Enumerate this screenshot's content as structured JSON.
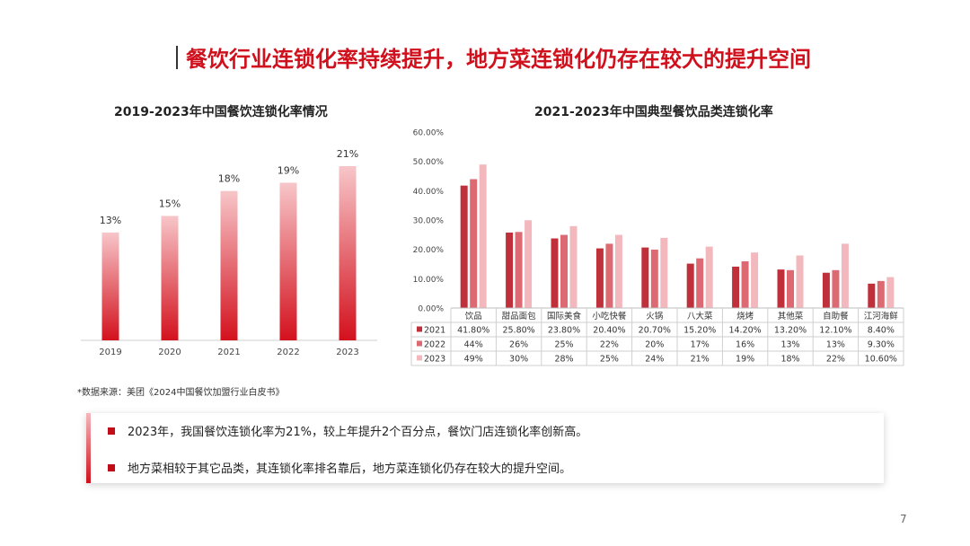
{
  "title": "餐饮行业连锁化率持续提升，地方菜连锁化仍存在较大的提升空间",
  "colors": {
    "accent": "#d0101c",
    "s2021": "#c0303a",
    "s2022": "#dd6a72",
    "s2023": "#f3b8bd"
  },
  "chart_data": [
    {
      "type": "bar",
      "title": "2019-2023年中国餐饮连锁化率情况",
      "categories": [
        "2019",
        "2020",
        "2021",
        "2022",
        "2023"
      ],
      "values": [
        13,
        15,
        18,
        19,
        21
      ],
      "data_labels": [
        "13%",
        "15%",
        "18%",
        "19%",
        "21%"
      ],
      "ylim": [
        0,
        25
      ]
    },
    {
      "type": "bar",
      "title": "2021-2023年中国典型餐饮品类连锁化率",
      "categories": [
        "饮品",
        "甜品面包",
        "国际美食",
        "小吃快餐",
        "火锅",
        "八大菜",
        "烧烤",
        "其他菜",
        "自助餐",
        "江河海鲜"
      ],
      "y_ticks": [
        "0.00%",
        "10.00%",
        "20.00%",
        "30.00%",
        "40.00%",
        "50.00%",
        "60.00%"
      ],
      "ylim": [
        0,
        60
      ],
      "legend": "table-below",
      "series": [
        {
          "name": "2021",
          "values": [
            41.8,
            25.8,
            23.8,
            20.4,
            20.7,
            15.2,
            14.2,
            13.2,
            12.1,
            8.4
          ],
          "labels": [
            "41.80%",
            "25.80%",
            "23.80%",
            "20.40%",
            "20.70%",
            "15.20%",
            "14.20%",
            "13.20%",
            "12.10%",
            "8.40%"
          ]
        },
        {
          "name": "2022",
          "values": [
            44,
            26,
            25,
            22,
            20,
            17,
            16,
            13,
            13,
            9.3
          ],
          "labels": [
            "44%",
            "26%",
            "25%",
            "22%",
            "20%",
            "17%",
            "16%",
            "13%",
            "13%",
            "9.30%"
          ]
        },
        {
          "name": "2023",
          "values": [
            49,
            30,
            28,
            25,
            24,
            21,
            19,
            18,
            22,
            10.6
          ],
          "labels": [
            "49%",
            "30%",
            "28%",
            "25%",
            "24%",
            "21%",
            "19%",
            "18%",
            "22%",
            "10.60%"
          ]
        }
      ]
    }
  ],
  "source": "*数据来源：美团《2024中国餐饮加盟行业白皮书》",
  "bullets": [
    "2023年，我国餐饮连锁化率为21%，较上年提升2个百分点，餐饮门店连锁化率创新高。",
    "地方菜相较于其它品类，其连锁化率排名靠后，地方菜连锁化仍存在较大的提升空间。"
  ],
  "page_number": "7"
}
